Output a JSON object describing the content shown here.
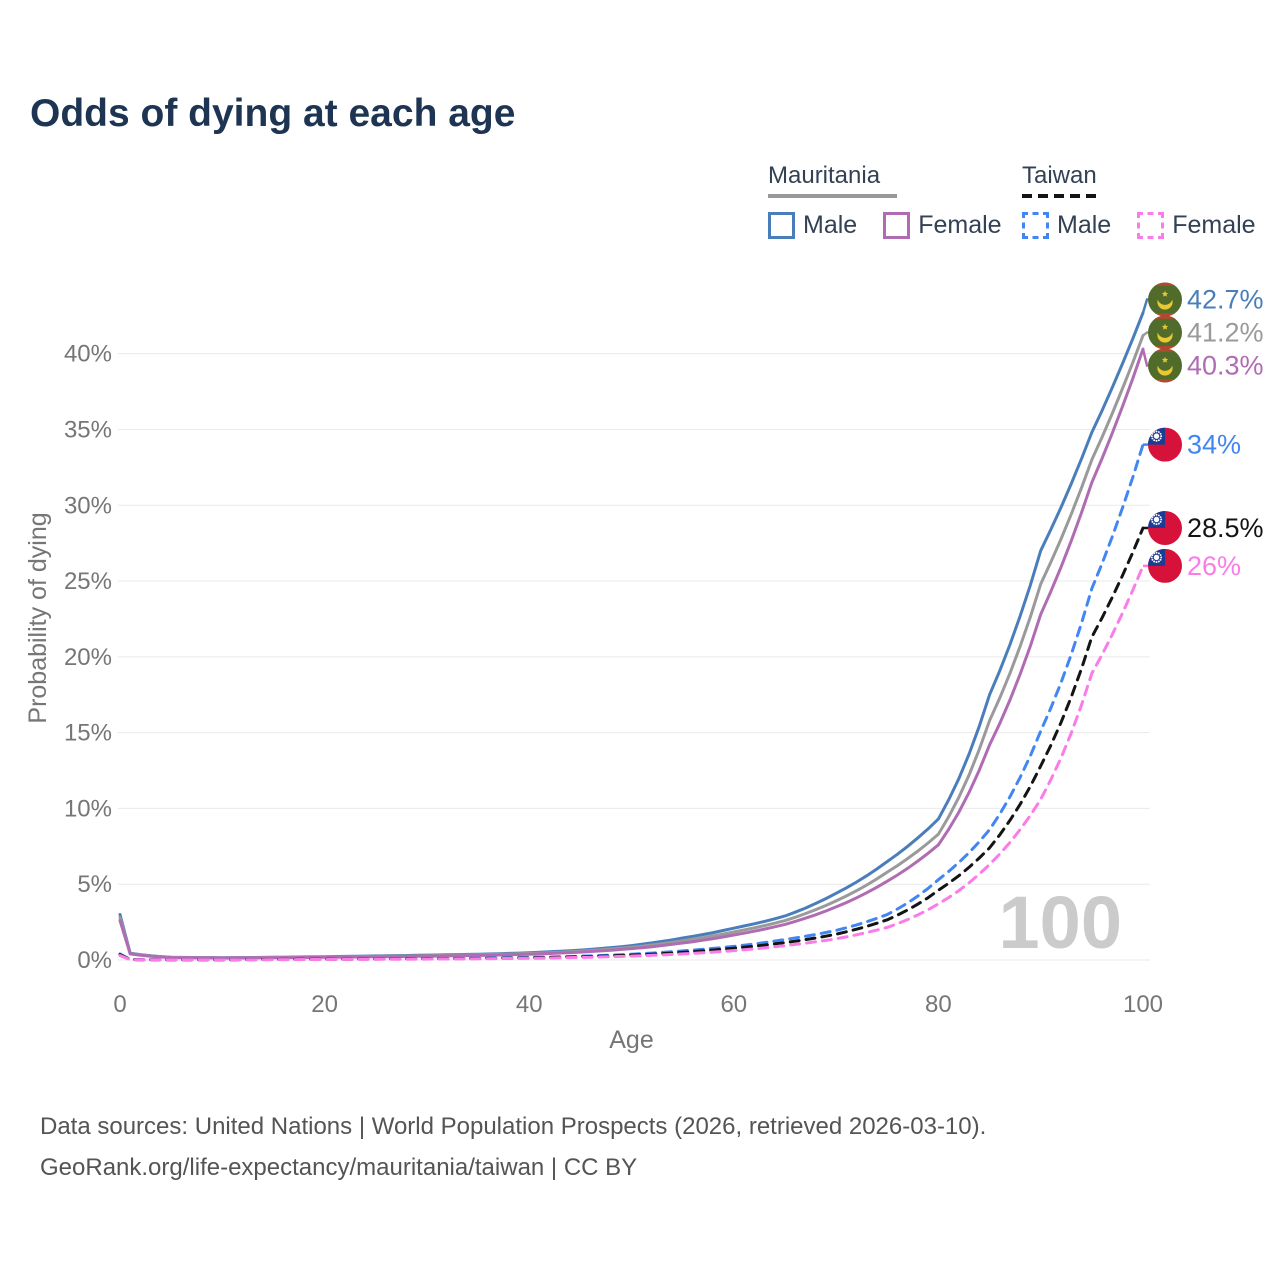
{
  "title": "Odds of dying at each age",
  "legend": {
    "groups": [
      {
        "name": "Mauritania",
        "line_style": "solid",
        "underline_color": "#999999",
        "items": [
          {
            "label": "Male",
            "color": "#4a7ebb",
            "dash": false
          },
          {
            "label": "Female",
            "color": "#b06cb3",
            "dash": false
          }
        ]
      },
      {
        "name": "Taiwan",
        "line_style": "dashed",
        "underline_color": "#141414",
        "items": [
          {
            "label": "Male",
            "color": "#4286f4",
            "dash": true
          },
          {
            "label": "Female",
            "color": "#fb7ce8",
            "dash": true
          }
        ]
      }
    ]
  },
  "watermark": "100",
  "footer": {
    "line1": "Data sources: United Nations | World Population Prospects (2026, retrieved 2026-03-10).",
    "line2": "GeoRank.org/life-expectancy/mauritania/taiwan | CC BY"
  },
  "chart_data": {
    "type": "line",
    "title": "Odds of dying at each age",
    "xlabel": "Age",
    "ylabel": "Probability of dying",
    "xlim": [
      0,
      100
    ],
    "ylim_percent": [
      0,
      44
    ],
    "x_ticks": [
      0,
      20,
      40,
      60,
      80,
      100
    ],
    "y_tick_values": [
      0,
      5,
      10,
      15,
      20,
      25,
      30,
      35,
      40
    ],
    "y_tick_labels": [
      "0%",
      "5%",
      "10%",
      "15%",
      "20%",
      "25%",
      "30%",
      "35%",
      "40%"
    ],
    "grid": true,
    "legend_position": "top-right",
    "ages": [
      0,
      1,
      5,
      10,
      15,
      20,
      25,
      30,
      35,
      40,
      45,
      50,
      55,
      60,
      65,
      70,
      75,
      80,
      85,
      90,
      95,
      100
    ],
    "series": [
      {
        "name": "Mauritania Male",
        "country": "Mauritania",
        "sex": "Male",
        "color": "#4a7ebb",
        "dash": false,
        "flag": "mauritania",
        "end_label": "42.7%",
        "values_percent": [
          3.0,
          0.45,
          0.18,
          0.15,
          0.18,
          0.22,
          0.27,
          0.32,
          0.38,
          0.48,
          0.65,
          0.95,
          1.45,
          2.1,
          2.9,
          4.4,
          6.5,
          9.3,
          17.5,
          27.0,
          34.8,
          42.7
        ]
      },
      {
        "name": "Mauritania Both sexes",
        "country": "Mauritania",
        "sex": "Both",
        "color": "#9a9a9a",
        "dash": false,
        "flag": "mauritania",
        "end_label": "41.2%",
        "values_percent": [
          2.8,
          0.42,
          0.17,
          0.14,
          0.17,
          0.2,
          0.24,
          0.28,
          0.34,
          0.43,
          0.58,
          0.84,
          1.27,
          1.85,
          2.6,
          3.9,
          5.8,
          8.3,
          15.8,
          24.8,
          33.0,
          41.2
        ]
      },
      {
        "name": "Mauritania Female",
        "country": "Mauritania",
        "sex": "Female",
        "color": "#b06cb3",
        "dash": false,
        "flag": "mauritania",
        "end_label": "40.3%",
        "values_percent": [
          2.6,
          0.4,
          0.16,
          0.13,
          0.15,
          0.18,
          0.21,
          0.25,
          0.3,
          0.38,
          0.52,
          0.75,
          1.12,
          1.65,
          2.35,
          3.5,
          5.2,
          7.6,
          14.2,
          22.8,
          31.5,
          40.3
        ]
      },
      {
        "name": "Taiwan Male",
        "country": "Taiwan",
        "sex": "Male",
        "color": "#4286f4",
        "dash": true,
        "flag": "taiwan",
        "end_label": "34%",
        "values_percent": [
          0.4,
          0.03,
          0.02,
          0.02,
          0.04,
          0.06,
          0.07,
          0.09,
          0.12,
          0.17,
          0.25,
          0.38,
          0.6,
          0.9,
          1.35,
          1.95,
          3.0,
          5.3,
          8.6,
          15.1,
          24.5,
          34.0
        ]
      },
      {
        "name": "Taiwan Both sexes",
        "country": "Taiwan",
        "sex": "Both",
        "color": "#141414",
        "dash": true,
        "flag": "taiwan",
        "end_label": "28.5%",
        "values_percent": [
          0.35,
          0.025,
          0.018,
          0.018,
          0.035,
          0.05,
          0.06,
          0.08,
          0.1,
          0.14,
          0.21,
          0.32,
          0.5,
          0.78,
          1.15,
          1.7,
          2.65,
          4.6,
          7.4,
          12.8,
          21.3,
          28.5
        ]
      },
      {
        "name": "Taiwan Female",
        "country": "Taiwan",
        "sex": "Female",
        "color": "#fb7ce8",
        "dash": true,
        "flag": "taiwan",
        "end_label": "26%",
        "values_percent": [
          0.3,
          0.02,
          0.015,
          0.015,
          0.025,
          0.035,
          0.045,
          0.06,
          0.08,
          0.11,
          0.17,
          0.26,
          0.4,
          0.62,
          0.95,
          1.4,
          2.15,
          3.7,
          6.3,
          10.6,
          18.9,
          26.0
        ]
      }
    ]
  }
}
